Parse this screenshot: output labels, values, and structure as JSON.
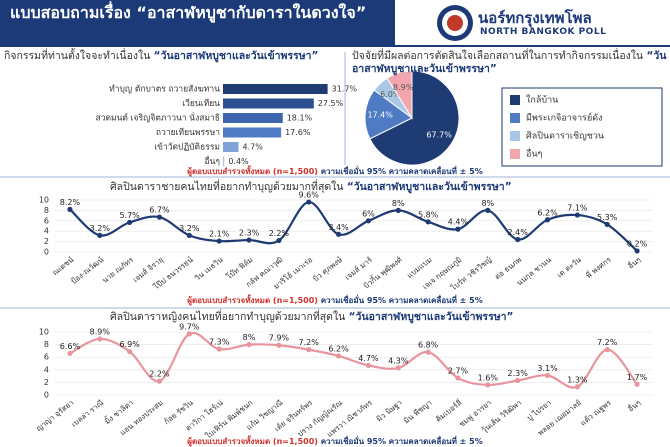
{
  "header": {
    "title": "แบบสอบถามเรื่อง “อาสาฬหบูชากับดาราในดวงใจ”",
    "logo_th": "นอร์ทกรุงเทพโพล",
    "logo_en": "NORTH BANGKOK POLL"
  },
  "chart_data": [
    {
      "type": "hbar",
      "title": "กิจกรรมที่ท่านตั้งใจจะทำเนื่องใน",
      "title_highlight": "“วันอาสาฬหบูชาและวันเข้าพรรษา”",
      "categories": [
        "ทำบุญ ตักบาตร ถวายสังฆทาน",
        "เวียนเทียน",
        "สวดมนต์ เจริญจิตภาวนา นั่งสมาธิ",
        "ถวายเทียนพรรษา",
        "เข้าวัดปฏิบัติธรรม",
        "อื่นๆ"
      ],
      "values": [
        31.7,
        27.5,
        18.1,
        17.6,
        4.7,
        0.4
      ],
      "value_labels": [
        "31.7%",
        "27.5%",
        "18.1%",
        "17.6%",
        "4.7%",
        "0.4%"
      ],
      "colors": [
        "#1f3b73",
        "#2c4e8e",
        "#3d65ad",
        "#4f7bc4",
        "#7fa3d8",
        "#a9c3e6"
      ],
      "note": [
        "ผู้ตอบแบบสำรวจทั้งหมด (n=1,500)",
        "ความเชื่อมั่น 95% ความคลาดเคลื่อนที่ ± 5%"
      ]
    },
    {
      "type": "pie",
      "title": "ปัจจัยที่มีผลต่อการตัดสินใจเลือกสถานที่ในการทำกิจกรรมเนื่องใน",
      "title_highlight": "“วันอาสาฬหบูชาและวันเข้าพรรษา”",
      "categories": [
        "ใกล้บ้าน",
        "มีพระเกจิอาจารย์ดัง",
        "ศิลปินดาราเชิญชวน",
        "อื่นๆ"
      ],
      "values": [
        67.7,
        17.4,
        6.0,
        8.9
      ],
      "value_labels": [
        "67.7%",
        "17.4%",
        "6.0%",
        "8.9%"
      ],
      "colors": [
        "#1f3b73",
        "#4f7bc4",
        "#a9c8e8",
        "#f2a7ae"
      ]
    },
    {
      "type": "line",
      "title": "ศิลปินดาราชายคนไทยที่อยากทำบุญด้วยมากที่สุดใน",
      "title_highlight": "“วันอาสาฬหบูชาและวันเข้าพรรษา”",
      "categories": [
        "ณเดชน์",
        "ป้อง-ณวัฒน์",
        "นาย ณภัทร",
        "เจมส์ จิรายุ",
        "โป๊ป ธนวรรธน์",
        "วิน เมธวิน",
        "โบ๊ท ฟิล์ม",
        "กลัฟ คณาวุฒิ",
        "มาริโอ้ เมาเร่อ",
        "บิว ศุภพงษ์",
        "เจมส์ มาร์",
        "บิวกิ้น พุฒิพงศ์",
        "แบมแบม",
        "เจเจ กฤษณภูมิ",
        "ไบร์ท วชิรวิชญ์",
        "ต่อ ธนภพ",
        "นนกุล ชานน",
        "เต ตะวัน",
        "พี่ พงศกร",
        "อื่นๆ"
      ],
      "series": [
        {
          "name": "ศิลปินดาราชาย",
          "color": "#1f3b73",
          "values": [
            8.2,
            3.2,
            5.7,
            6.7,
            3.2,
            2.1,
            2.3,
            2.2,
            9.6,
            3.4,
            6,
            8,
            5.8,
            4.4,
            8,
            2.4,
            6.2,
            7.1,
            5.3,
            0.2
          ],
          "value_labels": [
            "8.2%",
            "3.2%",
            "5.7%",
            "6.7%",
            "3.2%",
            "2.1%",
            "2.3%",
            "2.2%",
            "9.6%",
            "3.4%",
            "6%",
            "8%",
            "5.8%",
            "4.4%",
            "8%",
            "2.4%",
            "6.2%",
            "7.1%",
            "5.3%",
            "0.2%"
          ]
        }
      ],
      "ylim": [
        0,
        10
      ],
      "yticks": [
        0,
        2,
        4,
        6,
        8,
        10
      ],
      "grid": true,
      "note": [
        "ผู้ตอบแบบสำรวจทั้งหมด (n=1,500)",
        "ความเชื่อมั่น 95% ความคลาดเคลื่อนที่ ± 5%"
      ]
    },
    {
      "type": "line",
      "title": "ศิลปินดาราหญิงคนไทยที่อยากทำบุญด้วยมากที่สุดใน",
      "title_highlight": "“วันอาสาฬหบูชาและวันเข้าพรรษา”",
      "categories": [
        "ญาญ่า อุรัสยา",
        "เบลล่า ราณี",
        "มิ้ง ชาลิดา",
        "แอน ทองประสม",
        "ก้อย รัชวิน",
        "ดาวิกา โฮร์เน่",
        "ใบเฟิร์น พิมพ์ชนก",
        "แก้ม วิชญาณี",
        "เต้ย จรินทร์พร",
        "ปราง กัญญ์ณรัณ",
        "แพรวา ณิชาภัทร",
        "มิว นิษฐา",
        "มิน พีชญา",
        "คิมเบอร์ลี่",
        "ชมพู่ อารยา",
        "วุ้นเส้น วิริฒิพา",
        "ปู ไปรยา",
        "พลอย เฌอมาลย์",
        "แต้ว ณฐพร",
        "อื่นๆ"
      ],
      "series": [
        {
          "name": "ศิลปินดาราหญิง",
          "color": "#e8959e",
          "values": [
            6.6,
            8.9,
            6.9,
            2.2,
            9.7,
            7.3,
            8,
            7.9,
            7.2,
            6.2,
            4.7,
            4.3,
            6.8,
            2.7,
            1.6,
            2.3,
            3.1,
            1.3,
            7.2,
            1.7
          ],
          "value_labels": [
            "6.6%",
            "8.9%",
            "6.9%",
            "2.2%",
            "9.7%",
            "7.3%",
            "8%",
            "7.9%",
            "7.2%",
            "6.2%",
            "4.7%",
            "4.3%",
            "6.8%",
            "2.7%",
            "1.6%",
            "2.3%",
            "3.1%",
            "1.3%",
            "7.2%",
            "1.7%"
          ]
        }
      ],
      "ylim": [
        0,
        10
      ],
      "yticks": [
        0,
        2,
        4,
        6,
        8,
        10
      ],
      "grid": true,
      "note": [
        "ผู้ตอบแบบสำรวจทั้งหมด (n=1,500)",
        "ความเชื่อมั่น 95% ความคลาดเคลื่อนที่ ± 5%"
      ]
    }
  ]
}
